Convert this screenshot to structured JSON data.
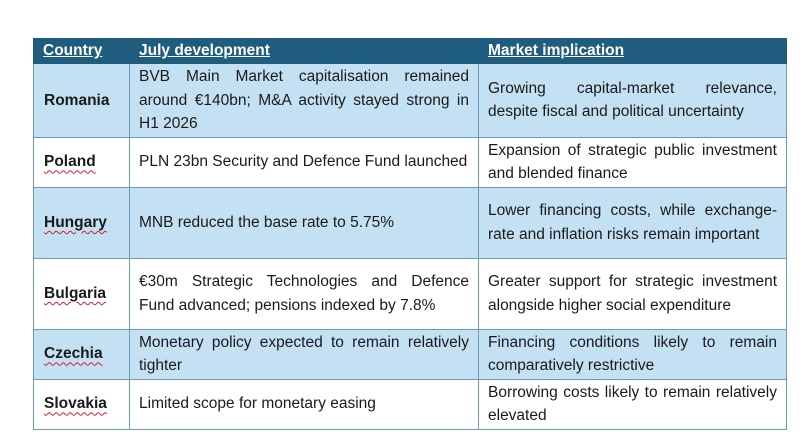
{
  "table": {
    "headers": {
      "country": "Country",
      "development": "July development",
      "implication": "Market implication"
    },
    "rows": [
      {
        "country": "Romania",
        "development": "BVB Main Market capitalisation remained around €140bn; M&A activity stayed strong in H1 2026",
        "implication": "Growing capital-market relevance, despite fiscal and political uncertainty"
      },
      {
        "country": "Poland",
        "development": "PLN 23bn Security and Defence Fund launched",
        "implication": "Expansion of strategic public investment and blended finance"
      },
      {
        "country": "Hungary",
        "development": "MNB reduced the base rate to 5.75%",
        "implication": "Lower financing costs, while exchange-rate and inflation risks remain important"
      },
      {
        "country": "Bulgaria",
        "development": "€30m Strategic Technologies and Defence Fund advanced; pensions indexed by 7.8%",
        "implication": "Greater support for strategic investment alongside higher social expenditure"
      },
      {
        "country": "Czechia",
        "development": "Monetary policy expected to remain relatively tighter",
        "implication": "Financing conditions likely to remain comparatively restrictive"
      },
      {
        "country": "Slovakia",
        "development": "Limited scope for monetary easing",
        "implication": "Borrowing costs likely to remain relatively elevated"
      }
    ]
  }
}
